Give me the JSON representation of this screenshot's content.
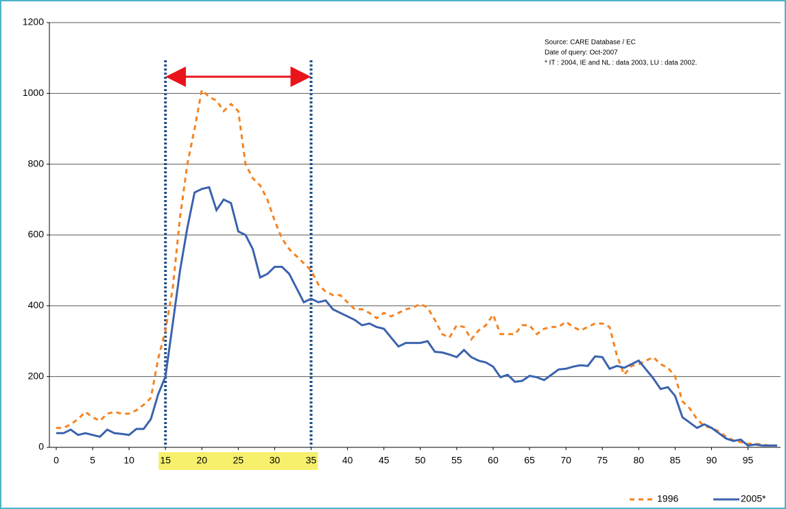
{
  "chart_data": {
    "type": "line",
    "notes": [
      "Source: CARE Database / EC",
      "Date of query: Oct-2007",
      "* IT : 2004, IE and NL : data 2003, LU : data 2002."
    ],
    "x": [
      0,
      1,
      2,
      3,
      4,
      5,
      6,
      7,
      8,
      9,
      10,
      11,
      12,
      13,
      14,
      15,
      16,
      17,
      18,
      19,
      20,
      21,
      22,
      23,
      24,
      25,
      26,
      27,
      28,
      29,
      30,
      31,
      32,
      33,
      34,
      35,
      36,
      37,
      38,
      39,
      40,
      41,
      42,
      43,
      44,
      45,
      46,
      47,
      48,
      49,
      50,
      51,
      52,
      53,
      54,
      55,
      56,
      57,
      58,
      59,
      60,
      61,
      62,
      63,
      64,
      65,
      66,
      67,
      68,
      69,
      70,
      71,
      72,
      73,
      74,
      75,
      76,
      77,
      78,
      79,
      80,
      81,
      82,
      83,
      84,
      85,
      86,
      87,
      88,
      89,
      90,
      91,
      92,
      93,
      94,
      95,
      96,
      97,
      98,
      99
    ],
    "series": [
      {
        "name": "1996",
        "color": "#f58220",
        "dashed": true,
        "values": [
          55,
          55,
          65,
          80,
          100,
          85,
          75,
          95,
          100,
          95,
          95,
          105,
          120,
          140,
          250,
          330,
          450,
          650,
          800,
          900,
          1010,
          990,
          980,
          950,
          970,
          950,
          800,
          760,
          740,
          700,
          640,
          590,
          560,
          540,
          520,
          500,
          460,
          440,
          430,
          430,
          410,
          390,
          390,
          380,
          365,
          380,
          370,
          380,
          390,
          395,
          405,
          395,
          360,
          320,
          310,
          345,
          340,
          305,
          330,
          345,
          375,
          320,
          320,
          320,
          345,
          345,
          320,
          335,
          340,
          340,
          355,
          340,
          330,
          340,
          350,
          350,
          340,
          260,
          205,
          230,
          235,
          245,
          255,
          235,
          225,
          200,
          130,
          110,
          80,
          60,
          55,
          45,
          30,
          20,
          15,
          10,
          10,
          8,
          5,
          5
        ]
      },
      {
        "name": "2005*",
        "color": "#3a62ae",
        "dashed": false,
        "values": [
          40,
          40,
          50,
          35,
          40,
          35,
          30,
          50,
          40,
          38,
          35,
          52,
          52,
          80,
          150,
          200,
          350,
          500,
          620,
          720,
          730,
          735,
          670,
          700,
          690,
          610,
          600,
          560,
          480,
          490,
          510,
          510,
          490,
          450,
          410,
          420,
          410,
          415,
          390,
          380,
          370,
          360,
          345,
          350,
          340,
          335,
          310,
          285,
          295,
          295,
          295,
          300,
          270,
          268,
          262,
          255,
          275,
          255,
          245,
          240,
          228,
          198,
          205,
          185,
          188,
          202,
          198,
          190,
          205,
          220,
          222,
          228,
          232,
          230,
          257,
          255,
          222,
          230,
          225,
          235,
          245,
          220,
          195,
          165,
          170,
          145,
          85,
          70,
          55,
          65,
          55,
          40,
          25,
          18,
          22,
          5,
          8,
          5,
          5,
          5
        ]
      }
    ],
    "highlight_range": [
      15,
      35
    ],
    "xlim": [
      0,
      99
    ],
    "xticks": [
      0,
      5,
      10,
      15,
      20,
      25,
      30,
      35,
      40,
      45,
      50,
      55,
      60,
      65,
      70,
      75,
      80,
      85,
      90,
      95
    ],
    "ylim": [
      0,
      1200
    ],
    "yticks": [
      0,
      200,
      400,
      600,
      800,
      1000,
      1200
    ],
    "grid": true,
    "legend": "bottom-right"
  }
}
